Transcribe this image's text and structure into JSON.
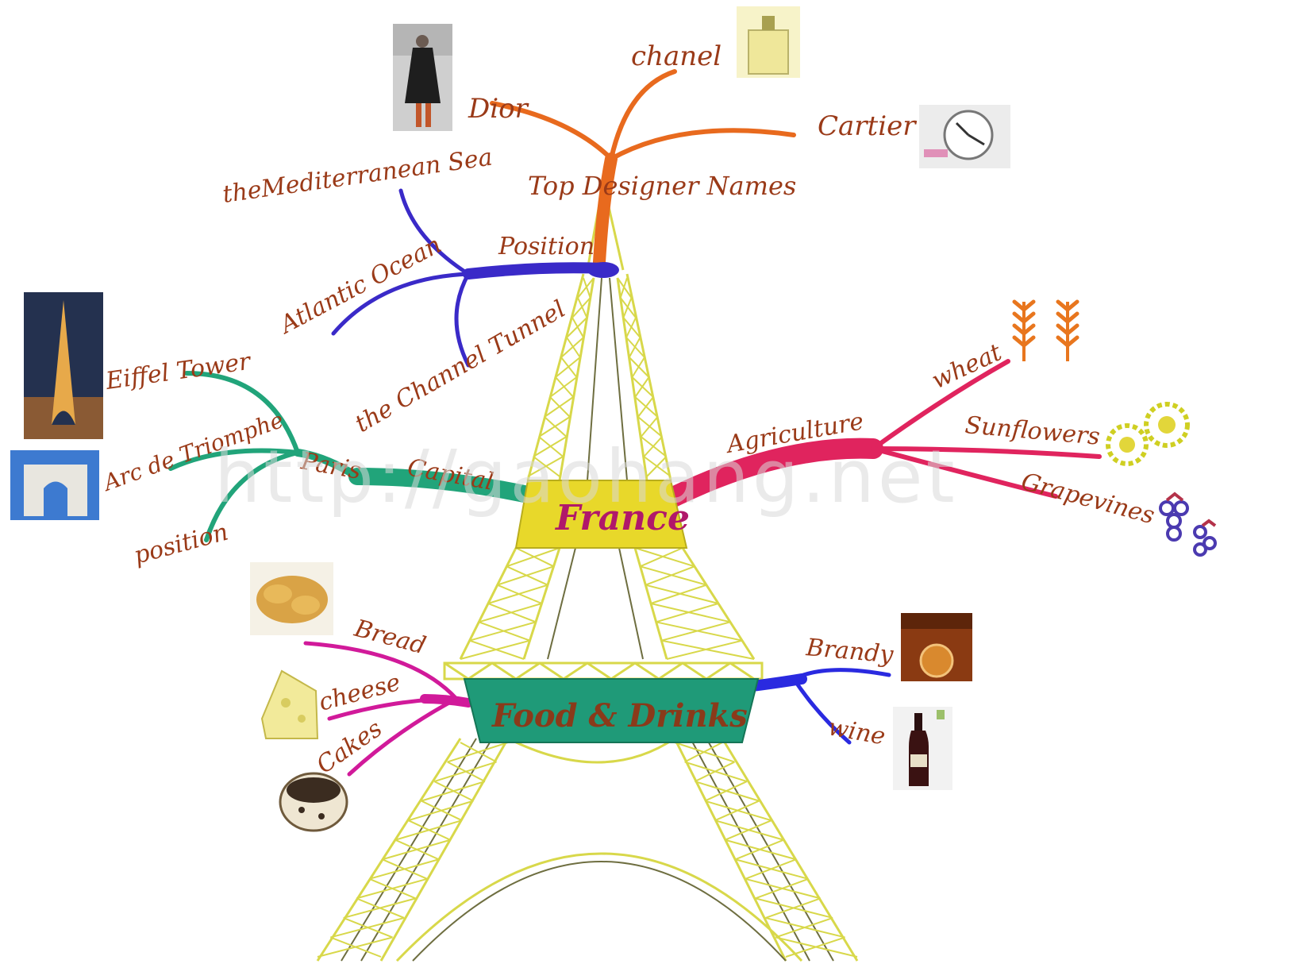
{
  "center": {
    "title": "France"
  },
  "branches": {
    "designers": {
      "label": "Top Designer Names",
      "color": "#e86a1e",
      "items": [
        "chanel",
        "Dior",
        "Cartier"
      ]
    },
    "position": {
      "label": "Position",
      "color": "#3a2ac8",
      "items": [
        "theMediterranean Sea",
        "Atlantic Ocean",
        "the Channel Tunnel"
      ]
    },
    "capital": {
      "label": "Capital",
      "color": "#21a47a",
      "node": "Paris",
      "items": [
        "Eiffel Tower",
        "Arc de Triomphe",
        "position"
      ]
    },
    "agriculture": {
      "label": "Agriculture",
      "color": "#e0245e",
      "items": [
        "wheat",
        "Sunflowers",
        "Grapevines"
      ]
    },
    "food": {
      "label": "Food & Drinks",
      "color_left": "#d11a9a",
      "color_right": "#2a2ae0",
      "left_items": [
        "Bread",
        "cheese",
        "Cakes"
      ],
      "right_items": [
        "Brandy",
        "wine"
      ]
    }
  },
  "colors": {
    "tower": "#d8d84a",
    "france_box": "#e8d82a",
    "food_box": "#1f9a78",
    "label_text": "#9a3a18"
  },
  "icons": {
    "chanel": "perfume-bottle-icon",
    "dior": "fashion-model-icon",
    "cartier": "watch-icon",
    "eiffel": "eiffel-tower-photo-icon",
    "arc": "arc-de-triomphe-photo-icon",
    "wheat": "wheat-icon",
    "sunflowers": "sunflower-icon",
    "grapevines": "grapes-icon",
    "bread": "bread-icon",
    "cheese": "cheese-icon",
    "cakes": "cake-icon",
    "brandy": "brandy-glass-icon",
    "wine": "wine-bottle-icon"
  },
  "watermark": "http://gaohang.net"
}
